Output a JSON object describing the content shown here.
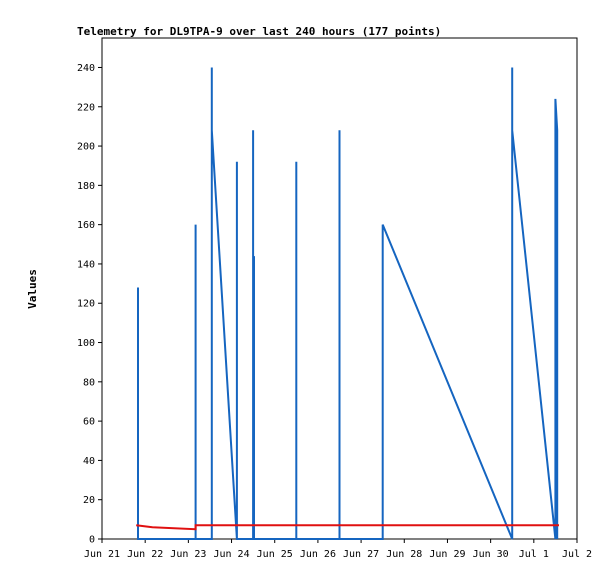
{
  "chart_data": {
    "type": "line",
    "title": "Telemetry for DL9TPA-9 over last 240 hours (177 points)",
    "xlabel": "",
    "ylabel": "Values",
    "xlim": [
      "2021-06-21T00:00",
      "2021-07-02T00:00"
    ],
    "ylim": [
      0,
      255
    ],
    "x_tick_labels": [
      "Jun 21",
      "Jun 22",
      "Jun 23",
      "Jun 24",
      "Jun 25",
      "Jun 26",
      "Jun 27",
      "Jun 28",
      "Jun 29",
      "Jun 30",
      "Jul 1",
      "Jul 2"
    ],
    "y_ticks": [
      0,
      20,
      40,
      60,
      80,
      100,
      120,
      140,
      160,
      180,
      200,
      220,
      240
    ],
    "grid": false,
    "series": [
      {
        "color": "#1565c0",
        "points": [
          [
            "2021-06-21T20:00",
            0
          ],
          [
            "2021-06-21T20:00",
            128
          ],
          [
            "2021-06-21T20:00",
            0
          ],
          [
            "2021-06-23T04:00",
            0
          ],
          [
            "2021-06-23T04:00",
            160
          ],
          [
            "2021-06-23T04:00",
            0
          ],
          [
            "2021-06-23T13:00",
            0
          ],
          [
            "2021-06-23T13:00",
            240
          ],
          [
            "2021-06-23T13:00",
            208
          ],
          [
            "2021-06-24T03:00",
            0
          ],
          [
            "2021-06-24T03:00",
            192
          ],
          [
            "2021-06-24T03:00",
            0
          ],
          [
            "2021-06-24T12:00",
            0
          ],
          [
            "2021-06-24T12:00",
            208
          ],
          [
            "2021-06-24T12:00",
            0
          ],
          [
            "2021-06-24T12:30",
            0
          ],
          [
            "2021-06-24T12:30",
            144
          ],
          [
            "2021-06-24T12:30",
            0
          ],
          [
            "2021-06-25T12:00",
            0
          ],
          [
            "2021-06-25T12:00",
            192
          ],
          [
            "2021-06-25T12:00",
            0
          ],
          [
            "2021-06-26T12:00",
            0
          ],
          [
            "2021-06-26T12:00",
            208
          ],
          [
            "2021-06-26T12:00",
            0
          ],
          [
            "2021-06-27T12:00",
            0
          ],
          [
            "2021-06-27T12:00",
            160
          ],
          [
            "2021-06-30T12:00",
            0
          ],
          [
            "2021-06-30T12:00",
            240
          ],
          [
            "2021-06-30T12:00",
            208
          ],
          [
            "2021-07-01T12:00",
            0
          ],
          [
            "2021-07-01T12:00",
            224
          ],
          [
            "2021-07-01T13:00",
            208
          ],
          [
            "2021-07-01T13:00",
            0
          ]
        ]
      },
      {
        "color": "#e01010",
        "points": [
          [
            "2021-06-21T19:00",
            7
          ],
          [
            "2021-06-22T04:00",
            6
          ],
          [
            "2021-06-23T04:00",
            5
          ],
          [
            "2021-06-23T04:00",
            7
          ],
          [
            "2021-06-26T12:00",
            7
          ],
          [
            "2021-06-30T12:00",
            7
          ],
          [
            "2021-07-01T14:00",
            7
          ]
        ]
      }
    ]
  }
}
